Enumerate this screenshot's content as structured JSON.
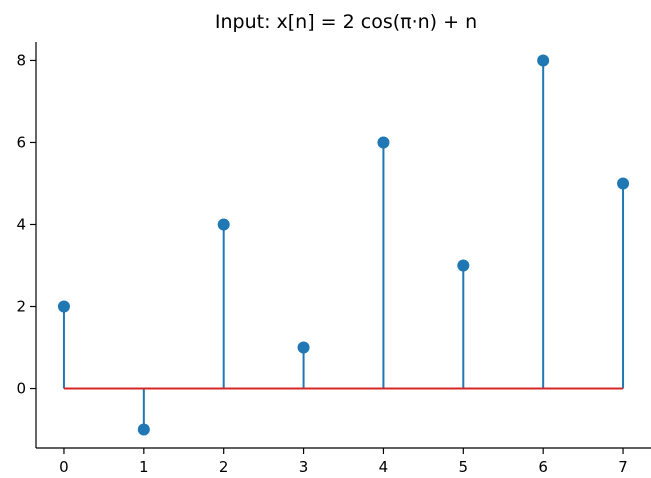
{
  "chart_data": {
    "type": "stem",
    "title": "Input: x[n] = 2 cos(π·n) + n",
    "xlabel": "",
    "ylabel": "",
    "x": [
      0,
      1,
      2,
      3,
      4,
      5,
      6,
      7
    ],
    "values": [
      2,
      -1,
      4,
      1,
      6,
      3,
      8,
      5
    ],
    "xlim": [
      -0.35,
      7.35
    ],
    "ylim": [
      -1.45,
      8.45
    ],
    "xticks": [
      0,
      1,
      2,
      3,
      4,
      5,
      6,
      7
    ],
    "yticks": [
      0,
      2,
      4,
      6,
      8
    ],
    "baseline": 0,
    "grid": false,
    "colors": {
      "stem": "#1f77b4",
      "marker": "#1f77b4",
      "baseline": "#d62728"
    }
  }
}
